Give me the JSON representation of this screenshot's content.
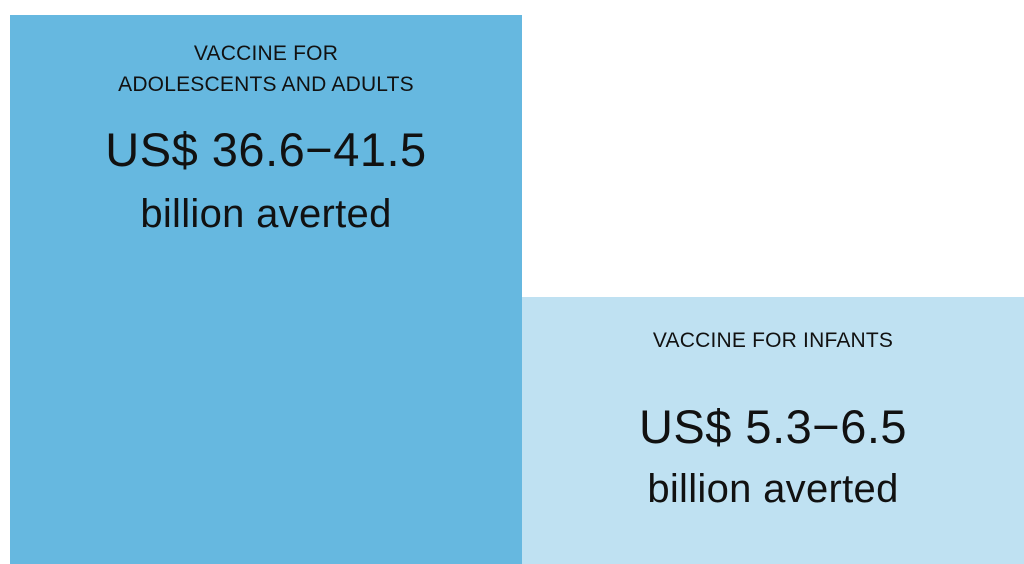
{
  "chart_data": {
    "type": "area",
    "categories": [
      "VACCINE FOR ADOLESCENTS AND ADULTS",
      "VACCINE FOR INFANTS"
    ],
    "values": [
      [
        36.6,
        41.5
      ],
      [
        5.3,
        6.5
      ]
    ],
    "panels": [
      {
        "title_lines": [
          "VACCINE FOR",
          "ADOLESCENTS AND ADULTS"
        ],
        "value_text": "US$ 36.6−41.5",
        "unit_text": "billion averted",
        "color": "#66b8e0"
      },
      {
        "title_lines": [
          "VACCINE FOR INFANTS"
        ],
        "value_text": "US$ 5.3−6.5",
        "unit_text": "billion averted",
        "color": "#bfe1f2"
      }
    ]
  }
}
